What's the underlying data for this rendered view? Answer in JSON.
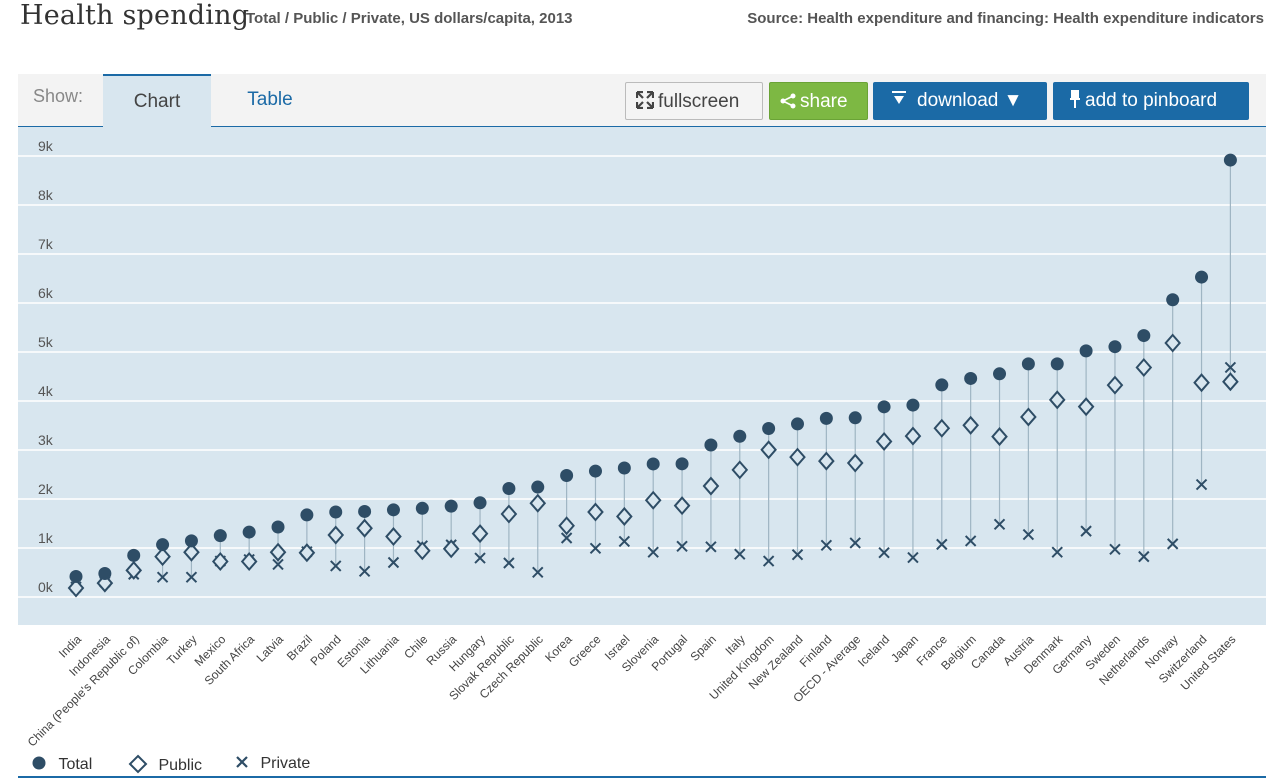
{
  "header": {
    "title": "Health spending",
    "subtitle": "Total / Public / Private, US dollars/capita, 2013",
    "source": "Source: Health expenditure and financing: Health expenditure indicators"
  },
  "toolbar": {
    "show_label": "Show:",
    "tabs": [
      {
        "label": "Chart",
        "active": true
      },
      {
        "label": "Table",
        "active": false
      }
    ],
    "fullscreen_label": "fullscreen",
    "share_label": "share",
    "download_label": "download ▼",
    "pinboard_label": "add to pinboard",
    "fullscreen_icon": "expand-icon",
    "share_icon": "share-icon",
    "download_icon": "download-icon",
    "pinboard_icon": "pin-icon"
  },
  "colors": {
    "accent": "#1b6aa6",
    "share": "#7db843",
    "plot_background": "#d8e6ef",
    "marker": "#2e4d66",
    "stem": "#9fb5c3"
  },
  "chart_data": {
    "type": "scatter",
    "title": "",
    "xlabel": "",
    "ylabel": "",
    "ylim": [
      -200,
      9100
    ],
    "yticks": [
      0,
      1000,
      2000,
      3000,
      4000,
      5000,
      6000,
      7000,
      8000,
      9000
    ],
    "ytick_labels": [
      "0k",
      "1k",
      "2k",
      "3k",
      "4k",
      "5k",
      "6k",
      "7k",
      "8k",
      "9k"
    ],
    "grid": true,
    "legend_position": "bottom-left",
    "categories": [
      "India",
      "Indonesia",
      "China (People's Republic of)",
      "Colombia",
      "Turkey",
      "Mexico",
      "South Africa",
      "Latvia",
      "Brazil",
      "Poland",
      "Estonia",
      "Lithuania",
      "Chile",
      "Russia",
      "Hungary",
      "Slovak Republic",
      "Czech Republic",
      "Korea",
      "Greece",
      "Israel",
      "Slovenia",
      "Portugal",
      "Spain",
      "Italy",
      "United Kingdom",
      "New Zealand",
      "Finland",
      "OECD - Average",
      "Iceland",
      "Japan",
      "France",
      "Belgium",
      "Canada",
      "Austria",
      "Denmark",
      "Germany",
      "Sweden",
      "Netherlands",
      "Norway",
      "Switzerland",
      "United States"
    ],
    "series": [
      {
        "name": "Total",
        "marker": "circle",
        "values": [
          215,
          275,
          646,
          864,
          941,
          1048,
          1121,
          1224,
          1471,
          1530,
          1542,
          1575,
          1606,
          1651,
          1719,
          2010,
          2040,
          2275,
          2366,
          2428,
          2511,
          2514,
          2898,
          3077,
          3235,
          3328,
          3442,
          3453,
          3677,
          3713,
          4124,
          4256,
          4351,
          4553,
          4553,
          4819,
          4904,
          5131,
          5862,
          6325,
          8713
        ]
      },
      {
        "name": "Public",
        "marker": "diamond",
        "values": [
          -20,
          80,
          340,
          620,
          710,
          520,
          520,
          710,
          700,
          1060,
          1200,
          1030,
          740,
          780,
          1090,
          1490,
          1710,
          1250,
          1530,
          1440,
          1770,
          1660,
          2060,
          2390,
          2800,
          2650,
          2570,
          2530,
          2970,
          3080,
          3240,
          3300,
          3070,
          3470,
          3820,
          3680,
          4120,
          4480,
          4980,
          4170,
          4190
        ]
      },
      {
        "name": "Private",
        "marker": "cross",
        "values": [
          0,
          100,
          260,
          200,
          200,
          530,
          560,
          460,
          720,
          430,
          320,
          500,
          840,
          860,
          590,
          490,
          300,
          1000,
          790,
          930,
          710,
          830,
          820,
          670,
          530,
          660,
          850,
          900,
          700,
          600,
          870,
          940,
          1280,
          1070,
          710,
          1140,
          770,
          620,
          880,
          2090,
          4480
        ]
      }
    ]
  },
  "legend": {
    "items": [
      {
        "label": "Total",
        "marker": "circle"
      },
      {
        "label": "Public",
        "marker": "diamond"
      },
      {
        "label": "Private",
        "marker": "cross"
      }
    ]
  }
}
